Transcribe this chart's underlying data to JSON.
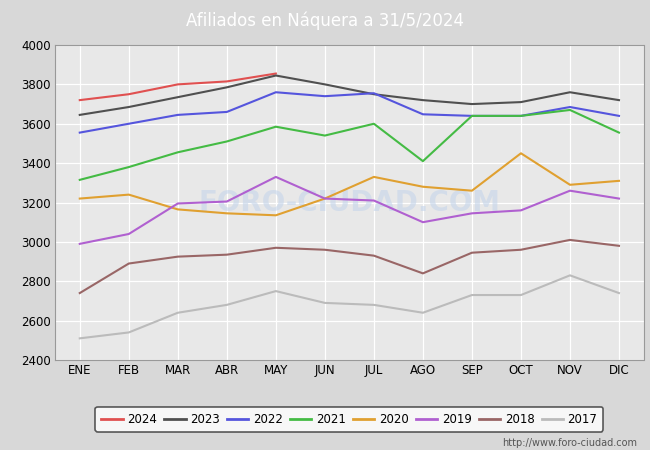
{
  "title": "Afiliados en Náquera a 31/5/2024",
  "title_bg_color": "#4a6fa5",
  "title_text_color": "white",
  "ylim": [
    2400,
    4000
  ],
  "yticks": [
    2400,
    2600,
    2800,
    3000,
    3200,
    3400,
    3600,
    3800,
    4000
  ],
  "months": [
    "ENE",
    "FEB",
    "MAR",
    "ABR",
    "MAY",
    "JUN",
    "JUL",
    "AGO",
    "SEP",
    "OCT",
    "NOV",
    "DIC"
  ],
  "fig_bg_color": "#d8d8d8",
  "plot_bg_color": "#e8e8e8",
  "watermark": "FORO-CIUDAD.COM",
  "url": "http://www.foro-ciudad.com",
  "series": [
    {
      "label": "2024",
      "color": "#e05050",
      "data": [
        3720,
        3750,
        3800,
        3815,
        3855,
        null,
        null,
        null,
        null,
        null,
        null,
        null
      ]
    },
    {
      "label": "2023",
      "color": "#505050",
      "data": [
        3645,
        3685,
        3735,
        3785,
        3845,
        3800,
        3750,
        3720,
        3700,
        3710,
        3760,
        3720
      ]
    },
    {
      "label": "2022",
      "color": "#5555dd",
      "data": [
        3555,
        3600,
        3645,
        3660,
        3760,
        3740,
        3755,
        3648,
        3640,
        3640,
        3685,
        3640
      ]
    },
    {
      "label": "2021",
      "color": "#44bb44",
      "data": [
        3315,
        3380,
        3455,
        3510,
        3585,
        3540,
        3600,
        3410,
        3640,
        3640,
        3670,
        3555
      ]
    },
    {
      "label": "2020",
      "color": "#e0a030",
      "data": [
        3220,
        3240,
        3165,
        3145,
        3135,
        3220,
        3330,
        3280,
        3260,
        3450,
        3290,
        3310
      ]
    },
    {
      "label": "2019",
      "color": "#b060d0",
      "data": [
        2990,
        3040,
        3195,
        3205,
        3330,
        3220,
        3210,
        3100,
        3145,
        3160,
        3260,
        3220
      ]
    },
    {
      "label": "2018",
      "color": "#996666",
      "data": [
        2740,
        2890,
        2925,
        2935,
        2970,
        2960,
        2930,
        2840,
        2945,
        2960,
        3010,
        2980
      ]
    },
    {
      "label": "2017",
      "color": "#bbbbbb",
      "data": [
        2510,
        2540,
        2640,
        2680,
        2750,
        2690,
        2680,
        2640,
        2730,
        2730,
        2830,
        2740
      ]
    }
  ]
}
